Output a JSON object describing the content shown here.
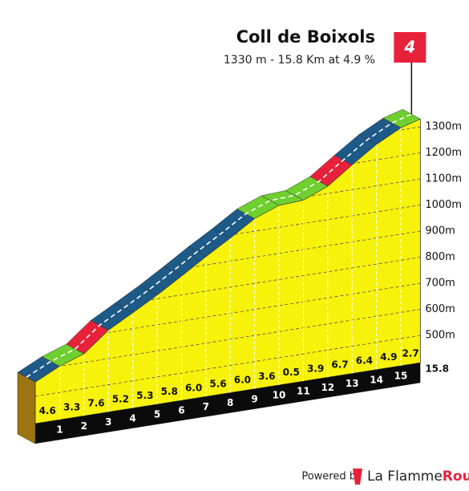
{
  "chart_data": {
    "type": "climb-profile",
    "title": "Coll de Boixols",
    "subtitle": "1330 m - 15.8 Km at 4.9 %",
    "category": "4",
    "summit": 1330,
    "distance": 15.8,
    "km_marks": [
      1,
      2,
      3,
      4,
      5,
      6,
      7,
      8,
      9,
      10,
      11,
      12,
      13,
      14,
      15
    ],
    "gradients": [
      4.6,
      3.3,
      7.6,
      5.2,
      5.3,
      5.8,
      6.0,
      5.6,
      6.0,
      3.6,
      0.5,
      3.9,
      6.7,
      6.4,
      4.9,
      2.7
    ],
    "gradient_labels": [
      "4.6",
      "3.3",
      "7.6",
      "5.2",
      "5.3",
      "5.8",
      "6.0",
      "5.6",
      "6.0",
      "3.6",
      "0.5",
      "3.9",
      "6.7",
      "6.4",
      "4.9",
      "2.7"
    ],
    "segment_colors": [
      "#1d5a87",
      "#6fcf2e",
      "#e8213a",
      "#1d5a87",
      "#1d5a87",
      "#1d5a87",
      "#1d5a87",
      "#1d5a87",
      "#1d5a87",
      "#6fcf2e",
      "#6fcf2e",
      "#6fcf2e",
      "#e8213a",
      "#1d5a87",
      "#1d5a87",
      "#6fcf2e"
    ],
    "ylim": [
      395,
      1350
    ],
    "yticks": [
      {
        "value": 500,
        "label": "500m"
      },
      {
        "value": 600,
        "label": "600m"
      },
      {
        "value": 700,
        "label": "700m"
      },
      {
        "value": 800,
        "label": "800m"
      },
      {
        "value": 900,
        "label": "900m"
      },
      {
        "value": 1000,
        "label": "1000m"
      },
      {
        "value": 1100,
        "label": "1100m"
      },
      {
        "value": 1200,
        "label": "1200m"
      },
      {
        "value": 1300,
        "label": "1300m"
      }
    ],
    "grid": true
  },
  "footer": {
    "powered": "Powered by",
    "brand": "La Flamme",
    "brand_accent": "Rouge"
  }
}
